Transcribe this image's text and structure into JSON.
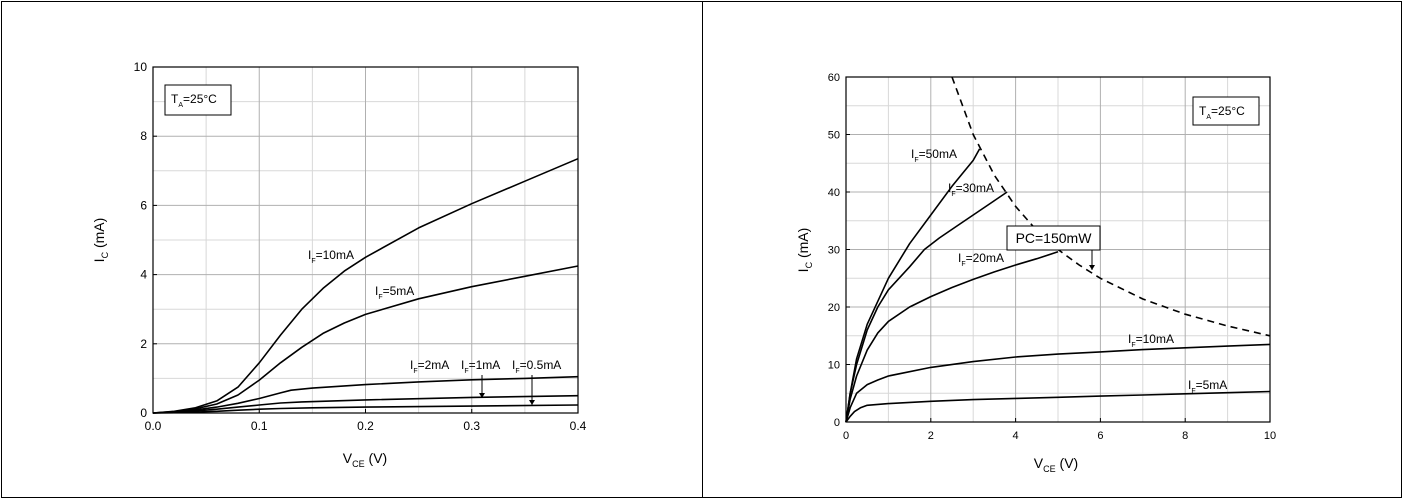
{
  "chart_data": [
    {
      "type": "line",
      "xlabel": {
        "main": "V",
        "sub": "CE",
        "unit": " (V)"
      },
      "ylabel": {
        "main": "I",
        "sub": "C",
        "unit": " (mA)"
      },
      "xlim": [
        0,
        0.4
      ],
      "ylim": [
        0,
        10
      ],
      "x_ticks": [
        0,
        0.1,
        0.2,
        0.3,
        0.4
      ],
      "x_tick_labels": [
        "0.0",
        "0.1",
        "0.2",
        "0.3",
        "0.4"
      ],
      "y_ticks": [
        0,
        2,
        4,
        6,
        8,
        10
      ],
      "y_tick_labels": [
        "0",
        "2",
        "4",
        "6",
        "8",
        "10"
      ],
      "grid": true,
      "condition": {
        "main": "T",
        "sub": "A",
        "rest": "=25°C"
      },
      "series": [
        {
          "name": "IF=10mA",
          "label": {
            "main": "I",
            "sub": "F",
            "rest": "=10mA"
          },
          "x": [
            0,
            0.02,
            0.04,
            0.06,
            0.08,
            0.1,
            0.12,
            0.14,
            0.16,
            0.18,
            0.2,
            0.25,
            0.3,
            0.35,
            0.4
          ],
          "y": [
            0,
            0.05,
            0.15,
            0.35,
            0.75,
            1.45,
            2.25,
            3.0,
            3.6,
            4.1,
            4.5,
            5.35,
            6.05,
            6.7,
            7.35
          ]
        },
        {
          "name": "IF=5mA",
          "label": {
            "main": "I",
            "sub": "F",
            "rest": "=5mA"
          },
          "x": [
            0,
            0.02,
            0.04,
            0.06,
            0.08,
            0.1,
            0.12,
            0.14,
            0.16,
            0.18,
            0.2,
            0.25,
            0.3,
            0.35,
            0.4
          ],
          "y": [
            0,
            0.04,
            0.12,
            0.26,
            0.52,
            0.95,
            1.45,
            1.9,
            2.3,
            2.6,
            2.85,
            3.3,
            3.65,
            3.95,
            4.25
          ]
        },
        {
          "name": "IF=2mA",
          "label": {
            "main": "I",
            "sub": "F",
            "rest": "=2mA"
          },
          "x": [
            0,
            0.02,
            0.04,
            0.06,
            0.08,
            0.1,
            0.12,
            0.13,
            0.15,
            0.2,
            0.25,
            0.3,
            0.35,
            0.4
          ],
          "y": [
            0,
            0.03,
            0.09,
            0.17,
            0.28,
            0.42,
            0.58,
            0.66,
            0.72,
            0.82,
            0.9,
            0.96,
            1.0,
            1.05
          ]
        },
        {
          "name": "IF=1mA",
          "label": {
            "main": "I",
            "sub": "F",
            "rest": "=1mA"
          },
          "x": [
            0,
            0.02,
            0.04,
            0.06,
            0.08,
            0.1,
            0.12,
            0.14,
            0.2,
            0.3,
            0.4
          ],
          "y": [
            0,
            0.02,
            0.06,
            0.11,
            0.17,
            0.23,
            0.29,
            0.32,
            0.38,
            0.45,
            0.5
          ]
        },
        {
          "name": "IF=0.5mA",
          "label": {
            "main": "I",
            "sub": "F",
            "rest": "=0.5mA"
          },
          "x": [
            0,
            0.02,
            0.04,
            0.06,
            0.08,
            0.1,
            0.12,
            0.15,
            0.2,
            0.3,
            0.4
          ],
          "y": [
            0,
            0.01,
            0.03,
            0.05,
            0.08,
            0.11,
            0.13,
            0.15,
            0.17,
            0.2,
            0.23
          ]
        }
      ]
    },
    {
      "type": "line",
      "xlabel": {
        "main": "V",
        "sub": "CE",
        "unit": " (V)"
      },
      "ylabel": {
        "main": "I",
        "sub": "C",
        "unit": " (mA)"
      },
      "xlim": [
        0,
        10
      ],
      "ylim": [
        0,
        60
      ],
      "x_ticks": [
        0,
        2,
        4,
        6,
        8,
        10
      ],
      "x_tick_labels": [
        "0",
        "2",
        "4",
        "6",
        "8",
        "10"
      ],
      "y_ticks": [
        0,
        10,
        20,
        30,
        40,
        50,
        60
      ],
      "y_tick_labels": [
        "0",
        "10",
        "20",
        "30",
        "40",
        "50",
        "60"
      ],
      "grid": true,
      "condition": {
        "main": "T",
        "sub": "A",
        "rest": "=25°C"
      },
      "power_limit_label": "PC=150mW",
      "series": [
        {
          "name": "IF=50mA",
          "label": {
            "main": "I",
            "sub": "F",
            "rest": "=50mA"
          },
          "x": [
            0,
            0.1,
            0.25,
            0.5,
            0.75,
            1.0,
            1.5,
            2.0,
            2.5,
            3.0,
            3.15
          ],
          "y": [
            0,
            5,
            11,
            17,
            21,
            25,
            31,
            36,
            41,
            45.5,
            47.5
          ]
        },
        {
          "name": "IF=30mA",
          "label": {
            "main": "I",
            "sub": "F",
            "rest": "=30mA"
          },
          "x": [
            0,
            0.1,
            0.25,
            0.5,
            0.75,
            1.0,
            1.5,
            1.85,
            2.2,
            2.6,
            3.0,
            3.4,
            3.8
          ],
          "y": [
            0,
            5,
            10,
            16,
            20,
            23,
            27,
            30,
            32,
            34,
            36,
            38,
            40
          ]
        },
        {
          "name": "IF=20mA",
          "label": {
            "main": "I",
            "sub": "F",
            "rest": "=20mA"
          },
          "x": [
            0,
            0.1,
            0.25,
            0.5,
            0.75,
            1.0,
            1.5,
            2.0,
            2.5,
            3.0,
            3.5,
            4.0,
            4.5,
            5.0
          ],
          "y": [
            0,
            4,
            8,
            12.5,
            15.5,
            17.5,
            20,
            21.8,
            23.4,
            24.8,
            26.1,
            27.3,
            28.4,
            29.6
          ]
        },
        {
          "name": "IF=10mA",
          "label": {
            "main": "I",
            "sub": "F",
            "rest": "=10mA"
          },
          "x": [
            0,
            0.1,
            0.25,
            0.5,
            0.75,
            1.0,
            2.0,
            3.0,
            4.0,
            5.0,
            6.0,
            7.0,
            8.0,
            9.0,
            10.0
          ],
          "y": [
            0,
            2.5,
            5,
            6.5,
            7.3,
            8,
            9.5,
            10.5,
            11.3,
            11.8,
            12.2,
            12.6,
            12.9,
            13.2,
            13.5
          ]
        },
        {
          "name": "IF=5mA",
          "label": {
            "main": "I",
            "sub": "F",
            "rest": "=5mA"
          },
          "x": [
            0,
            0.1,
            0.2,
            0.35,
            0.5,
            1.0,
            2.0,
            3.0,
            4.0,
            5.0,
            6.0,
            7.0,
            8.0,
            9.0,
            10.0
          ],
          "y": [
            0,
            1,
            1.8,
            2.5,
            2.9,
            3.2,
            3.6,
            3.9,
            4.1,
            4.3,
            4.5,
            4.7,
            4.9,
            5.1,
            5.3
          ]
        }
      ],
      "power_curve": {
        "watts": 0.15,
        "x": [
          2.5,
          3.0,
          3.5,
          4.0,
          4.5,
          5.0,
          5.5,
          6.0,
          7.0,
          8.0,
          9.0,
          10.0
        ],
        "y": [
          60,
          50,
          42.9,
          37.5,
          33.3,
          30,
          27.3,
          25,
          21.4,
          18.75,
          16.7,
          15
        ]
      }
    }
  ]
}
